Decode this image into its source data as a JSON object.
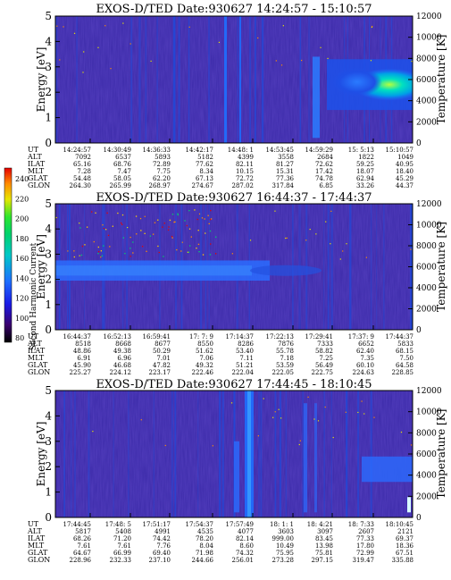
{
  "colorbar": {
    "label": "Second Harmonic Current",
    "ticks": [
      "240",
      "220",
      "200",
      "180",
      "160",
      "140",
      "120",
      "100",
      "80"
    ],
    "colors": [
      "#000000",
      "#3a006e",
      "#1a1ae6",
      "#1e6fff",
      "#00c8c8",
      "#00d26e",
      "#2ee62e",
      "#e6e600",
      "#ff8c00",
      "#e60000"
    ]
  },
  "chart_data": [
    {
      "type": "heatmap",
      "title": "EXOS-D/TED   Date:930627   14:24:57 - 15:10:57",
      "ylabel": "Energy [eV]",
      "y2label": "Temperature [K]",
      "ylim": [
        0,
        5
      ],
      "yticks": [
        "0",
        "1",
        "2",
        "3",
        "4",
        "5"
      ],
      "y2lim": [
        0,
        12000
      ],
      "y2ticks": [
        "0",
        "2000",
        "4000",
        "6000",
        "8000",
        "10000",
        "12000"
      ],
      "ephemeris": {
        "labels": [
          "UT",
          "ALT",
          "ILAT",
          "MLT",
          "GLAT",
          "GLON"
        ],
        "columns": [
          [
            "14:24:57",
            "7092",
            "65.16",
            "7.28",
            "54.48",
            "264.30"
          ],
          [
            "14:30:49",
            "6537",
            "68.76",
            "7.47",
            "58.05",
            "265.99"
          ],
          [
            "14:36:33",
            "5893",
            "72.89",
            "7.75",
            "62.20",
            "268.97"
          ],
          [
            "14:42:17",
            "5182",
            "77.62",
            "8.34",
            "67.13",
            "274.67"
          ],
          [
            "14:48: 1",
            "4399",
            "82.11",
            "10.15",
            "72.72",
            "287.02"
          ],
          [
            "14:53:45",
            "3558",
            "81.27",
            "15.31",
            "77.36",
            "317.84"
          ],
          [
            "14:59:29",
            "2684",
            "72.62",
            "17.42",
            "74.78",
            "6.85"
          ],
          [
            "15: 5:13",
            "1822",
            "59.25",
            "18.07",
            "62.94",
            "33.26"
          ],
          [
            "15:10:57",
            "1049",
            "40.95",
            "18.40",
            "45.29",
            "44.37"
          ]
        ]
      }
    },
    {
      "type": "heatmap",
      "title": "EXOS-D/TED   Date:930627   16:44:37 - 17:44:37",
      "ylabel": "Energy [eV]",
      "y2label": "Temperature [K]",
      "ylim": [
        0,
        5
      ],
      "yticks": [
        "0",
        "1",
        "2",
        "3",
        "4",
        "5"
      ],
      "y2lim": [
        0,
        12000
      ],
      "y2ticks": [
        "0",
        "2000",
        "4000",
        "6000",
        "8000",
        "10000",
        "12000"
      ],
      "ephemeris": {
        "labels": [
          "UT",
          "ALT",
          "ILAT",
          "MLT",
          "GLAT",
          "GLON"
        ],
        "columns": [
          [
            "16:44:37",
            "8518",
            "48.86",
            "6.91",
            "45.90",
            "225.27"
          ],
          [
            "16:52:13",
            "8668",
            "49.38",
            "6.96",
            "46.68",
            "224.12"
          ],
          [
            "16:59:41",
            "8677",
            "50.29",
            "7.01",
            "47.82",
            "223.17"
          ],
          [
            "17: 7: 9",
            "8550",
            "51.62",
            "7.06",
            "49.32",
            "222.46"
          ],
          [
            "17:14:37",
            "8286",
            "53.40",
            "7.11",
            "51.21",
            "222.04"
          ],
          [
            "17:22:13",
            "7876",
            "55.78",
            "7.18",
            "53.59",
            "222.05"
          ],
          [
            "17:29:41",
            "7333",
            "58.82",
            "7.25",
            "56.49",
            "222.75"
          ],
          [
            "17:37: 9",
            "6652",
            "62.40",
            "7.35",
            "60.10",
            "224.63"
          ],
          [
            "17:44:37",
            "5833",
            "68.15",
            "7.50",
            "64.58",
            "228.85"
          ]
        ]
      }
    },
    {
      "type": "heatmap",
      "title": "EXOS-D/TED   Date:930627   17:44:45 - 18:10:45",
      "ylabel": "Energy [eV]",
      "y2label": "Temperature [K]",
      "ylim": [
        0,
        5
      ],
      "yticks": [
        "0",
        "1",
        "2",
        "3",
        "4",
        "5"
      ],
      "y2lim": [
        0,
        12000
      ],
      "y2ticks": [
        "0",
        "2000",
        "4000",
        "6000",
        "8000",
        "10000",
        "12000"
      ],
      "ephemeris": {
        "labels": [
          "UT",
          "ALT",
          "ILAT",
          "MLT",
          "GLAT",
          "GLON"
        ],
        "columns": [
          [
            "17:44:45",
            "5817",
            "68.26",
            "7.61",
            "64.67",
            "228.96"
          ],
          [
            "17:48: 5",
            "5408",
            "71.20",
            "7.61",
            "66.99",
            "232.33"
          ],
          [
            "17:51:17",
            "4991",
            "74.42",
            "7.76",
            "69.40",
            "237.10"
          ],
          [
            "17:54:37",
            "4535",
            "78.20",
            "8.04",
            "71.98",
            "244.66"
          ],
          [
            "17:57:49",
            "4077",
            "82.14",
            "8.60",
            "74.32",
            "256.01"
          ],
          [
            "18: 1: 1",
            "3603",
            "999.00",
            "10.49",
            "75.95",
            "273.28"
          ],
          [
            "18: 4:21",
            "3097",
            "83.45",
            "13.98",
            "75.81",
            "297.15"
          ],
          [
            "18: 7:33",
            "2607",
            "77.33",
            "17.80",
            "72.99",
            "319.47"
          ],
          [
            "18:10:45",
            "2121",
            "69.37",
            "18.36",
            "67.51",
            "335.88"
          ]
        ]
      }
    }
  ]
}
